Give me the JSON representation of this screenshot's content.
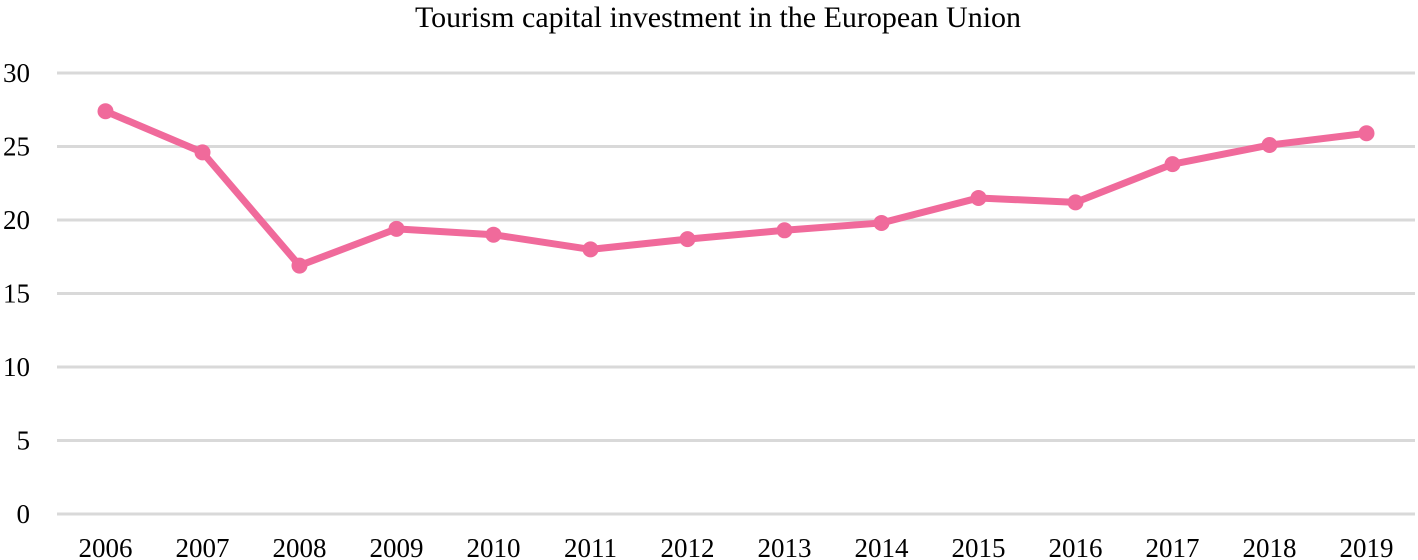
{
  "chart_data": {
    "type": "line",
    "title": "Tourism capital investment in the European Union",
    "xlabel": "",
    "ylabel": "",
    "categories": [
      "2006",
      "2007",
      "2008",
      "2009",
      "2010",
      "2011",
      "2012",
      "2013",
      "2014",
      "2015",
      "2016",
      "2017",
      "2018",
      "2019"
    ],
    "series": [
      {
        "values": [
          27.4,
          24.6,
          16.9,
          19.4,
          19.0,
          18.0,
          18.7,
          19.3,
          19.8,
          21.5,
          21.2,
          23.8,
          25.1,
          25.9
        ],
        "color": "#f06a9b"
      }
    ],
    "ylim": [
      0,
      30
    ],
    "yticks": [
      "0",
      "5",
      "10",
      "15",
      "20",
      "25",
      "30"
    ],
    "grid": true,
    "legend": "none"
  }
}
